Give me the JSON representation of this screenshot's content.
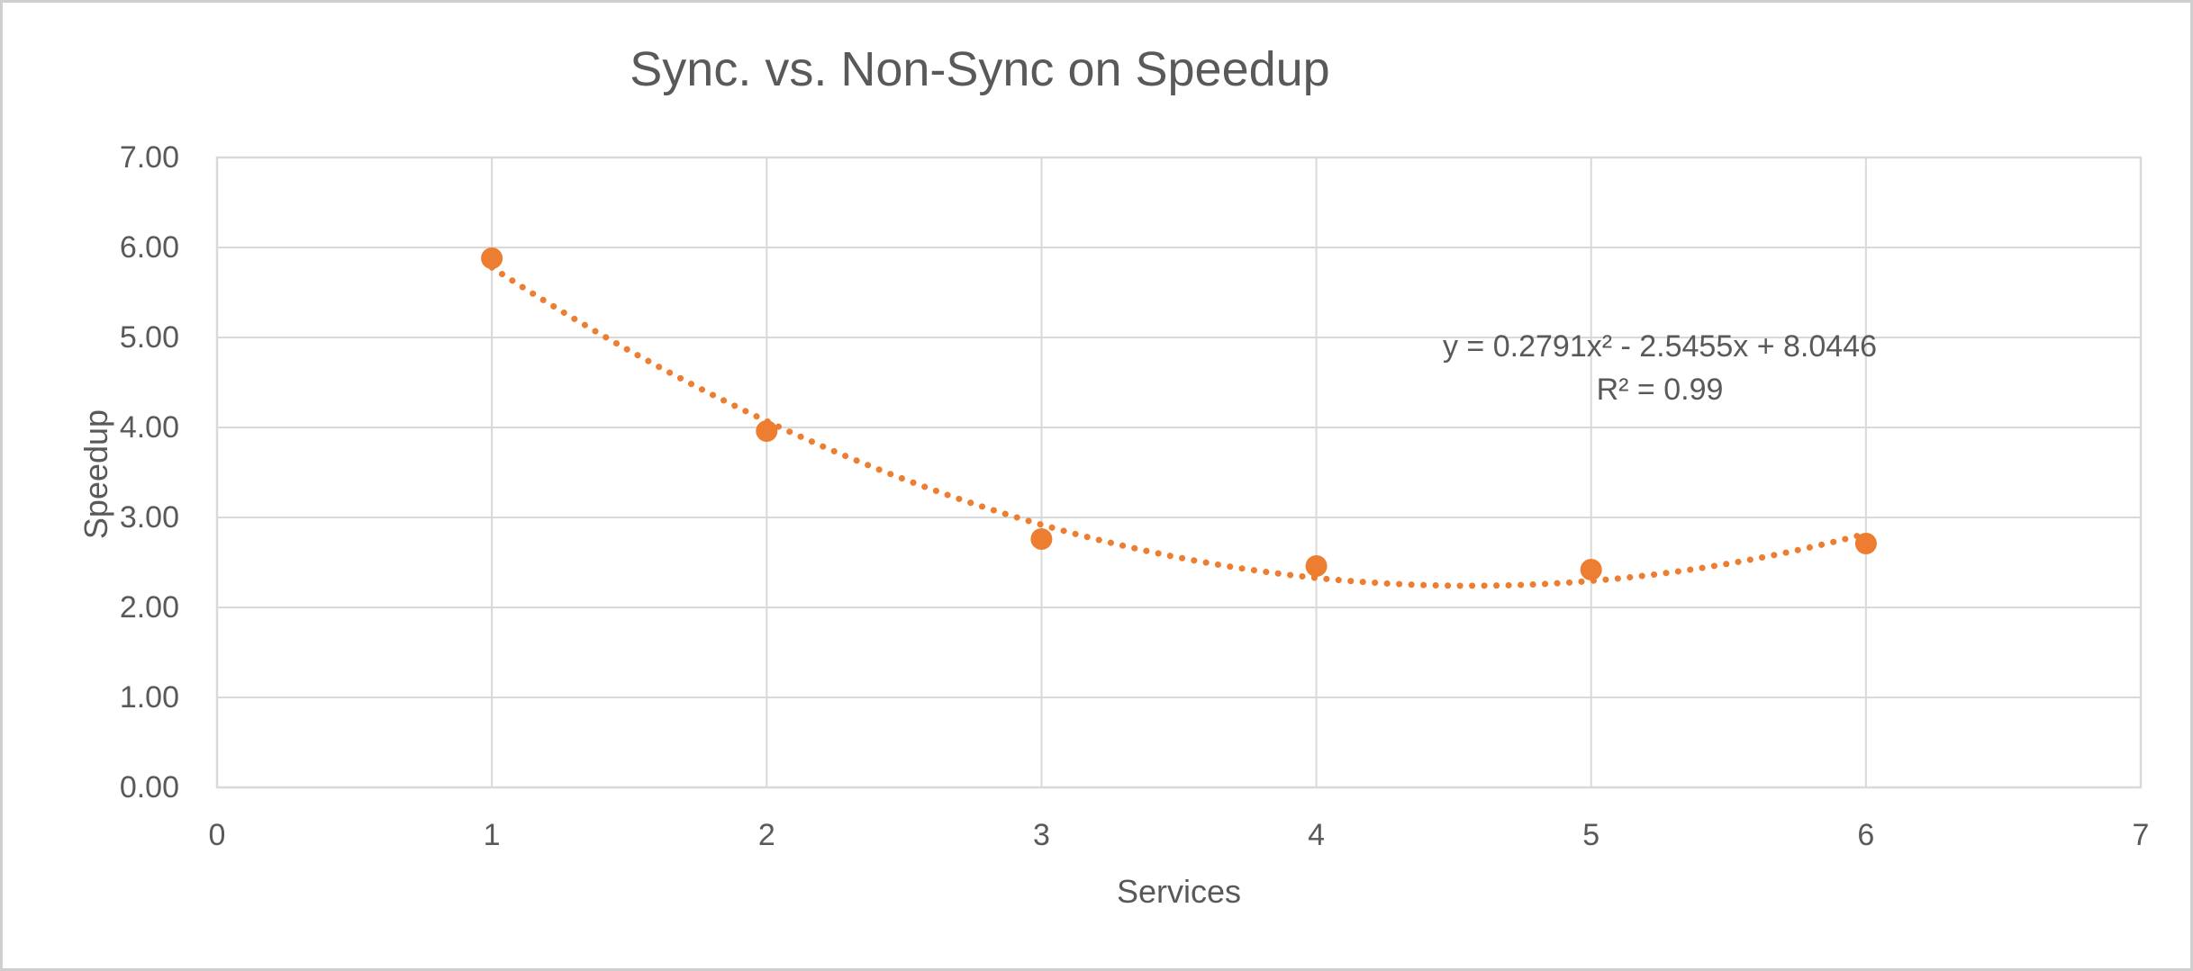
{
  "chart_data": {
    "type": "scatter",
    "title": "Sync. vs. Non-Sync on Speedup",
    "xlabel": "Services",
    "ylabel": "Speedup",
    "x": [
      1,
      2,
      3,
      4,
      5,
      6
    ],
    "y": [
      5.88,
      3.96,
      2.76,
      2.46,
      2.42,
      2.71
    ],
    "xlim": [
      0,
      7
    ],
    "ylim": [
      0,
      7
    ],
    "x_ticks": [
      "0",
      "1",
      "2",
      "3",
      "4",
      "5",
      "6",
      "7"
    ],
    "y_ticks": [
      "0.00",
      "1.00",
      "2.00",
      "3.00",
      "4.00",
      "5.00",
      "6.00",
      "7.00"
    ],
    "grid": true,
    "legend": false,
    "marker_style": "filled-circle",
    "trendline": {
      "type": "polynomial",
      "order": 2,
      "coefficients": {
        "a": 0.2791,
        "b": -2.5455,
        "c": 8.0446
      },
      "equation_label": "y = 0.2791x² - 2.5455x + 8.0446",
      "r_squared_label": "R² = 0.99",
      "range": [
        1,
        6
      ],
      "style": "dotted"
    },
    "colors": {
      "marker": "#ED7D31",
      "trendline": "#ED7D31",
      "gridline": "#D9D9D9",
      "plot_border": "#D9D9D9",
      "text": "#595959",
      "background": "#FFFFFF",
      "frame_border": "#CFCFCF"
    }
  }
}
